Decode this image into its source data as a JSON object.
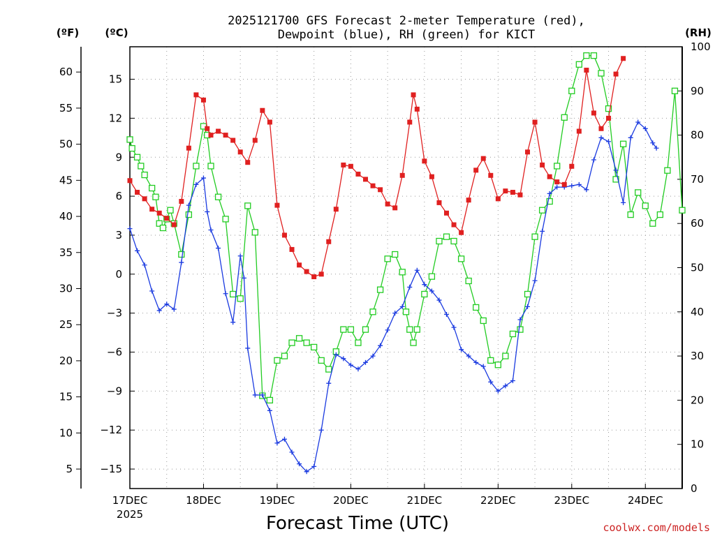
{
  "chart_data": {
    "type": "line",
    "title_line1": "2025121700 GFS Forecast 2-meter Temperature (red),",
    "title_line2": "Dewpoint (blue), RH (green) for KICT",
    "xlabel": "Forecast Time (UTC)",
    "credit": "coolwx.com/models",
    "units": {
      "fahrenheit": "(ºF)",
      "celsius": "(ºC)",
      "rh": "(RH)"
    },
    "x_unit": "days since 17DEC 00Z",
    "xlim": [
      0,
      7.5
    ],
    "x_ticks": [
      {
        "x": 0,
        "label": "17DEC",
        "sub": "2025"
      },
      {
        "x": 1,
        "label": "18DEC"
      },
      {
        "x": 2,
        "label": "19DEC"
      },
      {
        "x": 3,
        "label": "20DEC"
      },
      {
        "x": 4,
        "label": "21DEC"
      },
      {
        "x": 5,
        "label": "22DEC"
      },
      {
        "x": 6,
        "label": "23DEC"
      },
      {
        "x": 7,
        "label": "24DEC"
      }
    ],
    "y_celsius": {
      "ylim": [
        -16.5,
        17.5
      ],
      "ticks": [
        "15",
        "12",
        "9",
        "6",
        "3",
        "0",
        "-3",
        "-6",
        "-9",
        "-12",
        "-15"
      ]
    },
    "y_fahrenheit": {
      "ticks": [
        "60",
        "55",
        "50",
        "45",
        "40",
        "35",
        "30",
        "25",
        "20",
        "15",
        "10",
        "5"
      ]
    },
    "y_rh": {
      "ylim": [
        0,
        100
      ],
      "ticks": [
        "100",
        "90",
        "80",
        "70",
        "60",
        "50",
        "40",
        "30",
        "20",
        "10",
        "0"
      ]
    },
    "series": [
      {
        "name": "2-meter Temperature",
        "unit": "C",
        "color": "#e02020",
        "marker": "filled-square",
        "points": [
          [
            0,
            7.2
          ],
          [
            0.1,
            6.3
          ],
          [
            0.2,
            5.8
          ],
          [
            0.3,
            5.0
          ],
          [
            0.4,
            4.7
          ],
          [
            0.5,
            4.3
          ],
          [
            0.6,
            3.8
          ],
          [
            0.7,
            5.6
          ],
          [
            0.8,
            9.7
          ],
          [
            0.9,
            13.8
          ],
          [
            1.0,
            13.4
          ],
          [
            1.05,
            11.2
          ],
          [
            1.1,
            10.7
          ],
          [
            1.2,
            11.0
          ],
          [
            1.3,
            10.7
          ],
          [
            1.4,
            10.3
          ],
          [
            1.5,
            9.4
          ],
          [
            1.6,
            8.6
          ],
          [
            1.7,
            10.3
          ],
          [
            1.8,
            12.6
          ],
          [
            1.9,
            11.7
          ],
          [
            2.0,
            5.3
          ],
          [
            2.1,
            3.0
          ],
          [
            2.2,
            1.9
          ],
          [
            2.3,
            0.7
          ],
          [
            2.4,
            0.2
          ],
          [
            2.5,
            -0.2
          ],
          [
            2.6,
            0.0
          ],
          [
            2.7,
            2.5
          ],
          [
            2.8,
            5.0
          ],
          [
            2.9,
            8.4
          ],
          [
            3.0,
            8.3
          ],
          [
            3.1,
            7.7
          ],
          [
            3.2,
            7.3
          ],
          [
            3.3,
            6.8
          ],
          [
            3.4,
            6.5
          ],
          [
            3.5,
            5.4
          ],
          [
            3.6,
            5.1
          ],
          [
            3.7,
            7.6
          ],
          [
            3.8,
            11.7
          ],
          [
            3.85,
            13.8
          ],
          [
            3.9,
            12.7
          ],
          [
            4.0,
            8.7
          ],
          [
            4.1,
            7.5
          ],
          [
            4.2,
            5.5
          ],
          [
            4.3,
            4.7
          ],
          [
            4.4,
            3.8
          ],
          [
            4.5,
            3.2
          ],
          [
            4.6,
            5.7
          ],
          [
            4.7,
            8.0
          ],
          [
            4.8,
            8.9
          ],
          [
            4.9,
            7.6
          ],
          [
            5.0,
            5.8
          ],
          [
            5.1,
            6.4
          ],
          [
            5.2,
            6.3
          ],
          [
            5.3,
            6.1
          ],
          [
            5.4,
            9.4
          ],
          [
            5.5,
            11.7
          ],
          [
            5.6,
            8.4
          ],
          [
            5.7,
            7.5
          ],
          [
            5.8,
            7.1
          ],
          [
            5.9,
            6.9
          ],
          [
            6.0,
            8.3
          ],
          [
            6.1,
            11.0
          ],
          [
            6.2,
            15.7
          ],
          [
            6.3,
            12.4
          ],
          [
            6.4,
            11.2
          ],
          [
            6.5,
            12.0
          ],
          [
            6.6,
            15.4
          ],
          [
            6.7,
            16.6
          ]
        ]
      },
      {
        "name": "Dewpoint",
        "unit": "C",
        "color": "#1a3ae0",
        "marker": "plus",
        "points": [
          [
            0,
            3.5
          ],
          [
            0.1,
            1.8
          ],
          [
            0.2,
            0.7
          ],
          [
            0.3,
            -1.3
          ],
          [
            0.4,
            -2.8
          ],
          [
            0.5,
            -2.3
          ],
          [
            0.6,
            -2.7
          ],
          [
            0.7,
            0.9
          ],
          [
            0.8,
            5.3
          ],
          [
            0.9,
            6.9
          ],
          [
            1.0,
            7.4
          ],
          [
            1.05,
            4.8
          ],
          [
            1.1,
            3.4
          ],
          [
            1.2,
            2.0
          ],
          [
            1.3,
            -1.5
          ],
          [
            1.4,
            -3.7
          ],
          [
            1.5,
            1.4
          ],
          [
            1.55,
            -0.3
          ],
          [
            1.6,
            -5.7
          ],
          [
            1.7,
            -9.3
          ],
          [
            1.8,
            -9.3
          ],
          [
            1.9,
            -10.5
          ],
          [
            2.0,
            -13.0
          ],
          [
            2.1,
            -12.7
          ],
          [
            2.2,
            -13.7
          ],
          [
            2.3,
            -14.6
          ],
          [
            2.4,
            -15.2
          ],
          [
            2.5,
            -14.8
          ],
          [
            2.6,
            -12.0
          ],
          [
            2.7,
            -8.4
          ],
          [
            2.8,
            -6.2
          ],
          [
            2.9,
            -6.5
          ],
          [
            3.0,
            -7.0
          ],
          [
            3.1,
            -7.3
          ],
          [
            3.2,
            -6.8
          ],
          [
            3.3,
            -6.3
          ],
          [
            3.4,
            -5.5
          ],
          [
            3.5,
            -4.3
          ],
          [
            3.6,
            -3.0
          ],
          [
            3.7,
            -2.5
          ],
          [
            3.8,
            -1.0
          ],
          [
            3.9,
            0.3
          ],
          [
            4.0,
            -0.8
          ],
          [
            4.1,
            -1.3
          ],
          [
            4.2,
            -2.0
          ],
          [
            4.3,
            -3.1
          ],
          [
            4.4,
            -4.1
          ],
          [
            4.5,
            -5.8
          ],
          [
            4.6,
            -6.3
          ],
          [
            4.7,
            -6.8
          ],
          [
            4.8,
            -7.1
          ],
          [
            4.9,
            -8.3
          ],
          [
            5.0,
            -9.0
          ],
          [
            5.1,
            -8.6
          ],
          [
            5.2,
            -8.2
          ],
          [
            5.3,
            -3.5
          ],
          [
            5.4,
            -2.5
          ],
          [
            5.5,
            -0.5
          ],
          [
            5.6,
            3.3
          ],
          [
            5.7,
            6.2
          ],
          [
            5.8,
            6.7
          ],
          [
            5.9,
            6.7
          ],
          [
            6.0,
            6.8
          ],
          [
            6.1,
            6.9
          ],
          [
            6.2,
            6.5
          ],
          [
            6.3,
            8.8
          ],
          [
            6.4,
            10.5
          ],
          [
            6.5,
            10.2
          ],
          [
            6.6,
            8.0
          ],
          [
            6.7,
            5.5
          ],
          [
            6.8,
            10.5
          ],
          [
            6.9,
            11.7
          ],
          [
            7.0,
            11.2
          ],
          [
            7.1,
            10.1
          ],
          [
            7.15,
            9.7
          ]
        ]
      },
      {
        "name": "Relative Humidity",
        "unit": "%",
        "color": "#22cc22",
        "marker": "open-square",
        "points": [
          [
            0,
            79
          ],
          [
            0.03,
            77
          ],
          [
            0.1,
            75
          ],
          [
            0.15,
            73
          ],
          [
            0.2,
            71
          ],
          [
            0.3,
            68
          ],
          [
            0.35,
            66
          ],
          [
            0.4,
            60
          ],
          [
            0.45,
            59
          ],
          [
            0.5,
            61
          ],
          [
            0.55,
            63
          ],
          [
            0.6,
            60
          ],
          [
            0.7,
            53
          ],
          [
            0.8,
            62
          ],
          [
            0.9,
            73
          ],
          [
            1.0,
            82
          ],
          [
            1.05,
            80
          ],
          [
            1.1,
            73
          ],
          [
            1.2,
            66
          ],
          [
            1.3,
            61
          ],
          [
            1.4,
            44
          ],
          [
            1.5,
            43
          ],
          [
            1.6,
            64
          ],
          [
            1.7,
            58
          ],
          [
            1.8,
            21
          ],
          [
            1.9,
            20
          ],
          [
            2.0,
            29
          ],
          [
            2.1,
            30
          ],
          [
            2.2,
            33
          ],
          [
            2.3,
            34
          ],
          [
            2.4,
            33
          ],
          [
            2.5,
            32
          ],
          [
            2.6,
            29
          ],
          [
            2.7,
            27
          ],
          [
            2.8,
            31
          ],
          [
            2.9,
            36
          ],
          [
            3.0,
            36
          ],
          [
            3.1,
            33
          ],
          [
            3.2,
            36
          ],
          [
            3.3,
            40
          ],
          [
            3.4,
            45
          ],
          [
            3.5,
            52
          ],
          [
            3.6,
            53
          ],
          [
            3.7,
            49
          ],
          [
            3.75,
            40
          ],
          [
            3.8,
            36
          ],
          [
            3.85,
            33
          ],
          [
            3.9,
            36
          ],
          [
            4.0,
            44
          ],
          [
            4.1,
            48
          ],
          [
            4.2,
            56
          ],
          [
            4.3,
            57
          ],
          [
            4.4,
            56
          ],
          [
            4.5,
            52
          ],
          [
            4.6,
            47
          ],
          [
            4.7,
            41
          ],
          [
            4.8,
            38
          ],
          [
            4.9,
            29
          ],
          [
            5.0,
            28
          ],
          [
            5.1,
            30
          ],
          [
            5.2,
            35
          ],
          [
            5.3,
            36
          ],
          [
            5.4,
            44
          ],
          [
            5.5,
            57
          ],
          [
            5.6,
            63
          ],
          [
            5.7,
            65
          ],
          [
            5.8,
            73
          ],
          [
            5.9,
            84
          ],
          [
            6.0,
            90
          ],
          [
            6.1,
            96
          ],
          [
            6.2,
            98
          ],
          [
            6.3,
            98
          ],
          [
            6.4,
            94
          ],
          [
            6.5,
            86
          ],
          [
            6.6,
            70
          ],
          [
            6.7,
            78
          ],
          [
            6.8,
            62
          ],
          [
            6.9,
            67
          ],
          [
            7.0,
            64
          ],
          [
            7.1,
            60
          ],
          [
            7.2,
            62
          ],
          [
            7.3,
            72
          ],
          [
            7.4,
            90
          ],
          [
            7.5,
            63
          ]
        ]
      }
    ]
  }
}
